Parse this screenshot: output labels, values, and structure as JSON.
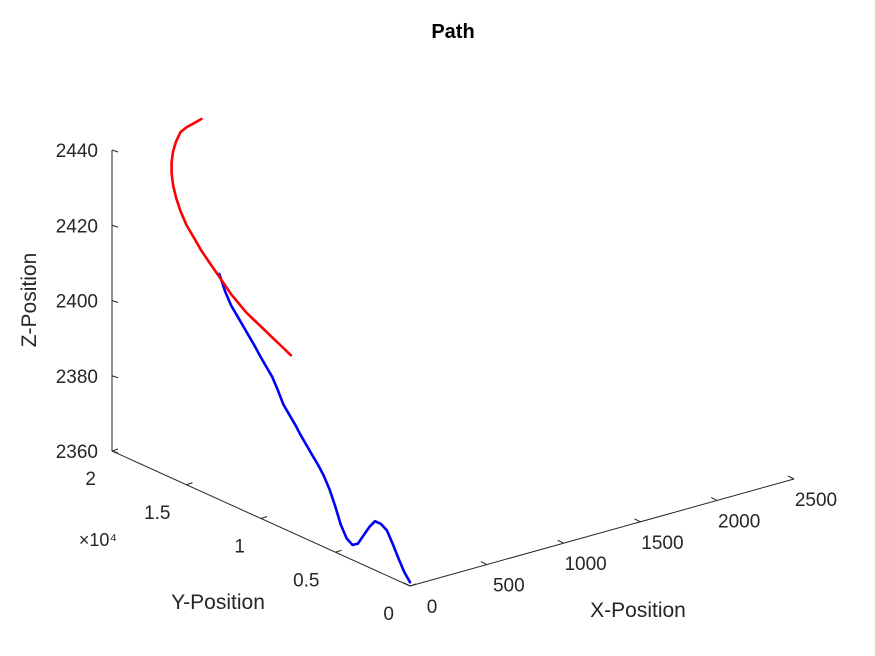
{
  "chart_data": {
    "type": "line",
    "view": "3d",
    "title": "Path",
    "xlabel": "X-Position",
    "ylabel": "Y-Position",
    "zlabel": "Z-Position",
    "xlim": [
      0,
      2500
    ],
    "ylim": [
      0,
      20000
    ],
    "zlim": [
      2360,
      2440
    ],
    "x_ticks": [
      0,
      500,
      1000,
      1500,
      2000,
      2500
    ],
    "x_tick_labels": [
      "0",
      "500",
      "1000",
      "1500",
      "2000",
      "2500"
    ],
    "y_ticks": [
      0,
      5000,
      10000,
      15000,
      20000
    ],
    "y_tick_labels": [
      "0",
      "0.5",
      "1",
      "1.5",
      "2"
    ],
    "y_exponent_label": "×10⁴",
    "z_ticks": [
      2360,
      2380,
      2400,
      2420,
      2440
    ],
    "z_tick_labels": [
      "2360",
      "2380",
      "2400",
      "2420",
      "2440"
    ],
    "grid": false,
    "series": [
      {
        "color": "#0000ff",
        "x": [
          0,
          0,
          0,
          0,
          0,
          0,
          0,
          0,
          0,
          0,
          0,
          0,
          0,
          0,
          0,
          0,
          0,
          0,
          0,
          0,
          0,
          0,
          0,
          0,
          0,
          0,
          0,
          0,
          0,
          0,
          0,
          0,
          0,
          0
        ],
        "y": [
          0,
          380,
          780,
          1150,
          1550,
          1950,
          2350,
          2700,
          3100,
          3500,
          3850,
          4250,
          4650,
          5000,
          5400,
          5800,
          6150,
          6550,
          6950,
          7350,
          7700,
          8100,
          8500,
          8850,
          9250,
          9650,
          10050,
          10400,
          10800,
          11200,
          11600,
          12000,
          12400,
          12800
        ],
        "z": [
          2361,
          2363,
          2366,
          2369,
          2372,
          2373,
          2373,
          2371,
          2368,
          2365,
          2364,
          2365,
          2368,
          2372,
          2376,
          2379,
          2381,
          2383,
          2385,
          2387,
          2389,
          2391,
          2393,
          2396,
          2399,
          2401,
          2403,
          2405,
          2407,
          2409,
          2411,
          2413,
          2416,
          2420
        ]
      },
      {
        "color": "#ff0000",
        "x": [
          0,
          0,
          0,
          0,
          0,
          0,
          0,
          0,
          0,
          0,
          0,
          0,
          0,
          0,
          0,
          0,
          0,
          0,
          0,
          0,
          0,
          0,
          0,
          0,
          0,
          0
        ],
        "y": [
          8000,
          8500,
          9000,
          9500,
          10000,
          10500,
          11000,
          11500,
          12000,
          12500,
          13000,
          13500,
          14000,
          14500,
          15000,
          15400,
          15700,
          15900,
          16000,
          16000,
          15900,
          15700,
          15400,
          15000,
          14500,
          14000
        ],
        "z": [
          2407,
          2408,
          2409,
          2410,
          2411,
          2412,
          2413,
          2414.5,
          2416,
          2418,
          2420,
          2422,
          2424,
          2426.5,
          2429,
          2432,
          2435,
          2438,
          2441,
          2444,
          2447,
          2450,
          2453,
          2455,
          2457,
          2459
        ]
      }
    ]
  }
}
